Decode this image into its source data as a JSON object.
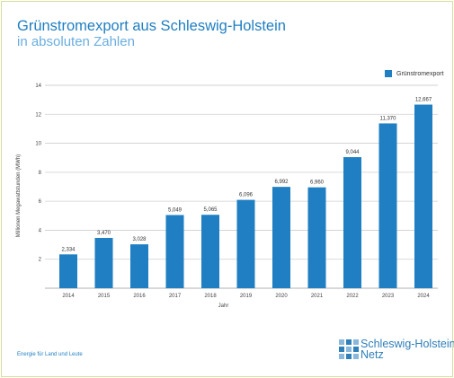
{
  "title": "Grünstromexport aus Schleswig-Holstein",
  "subtitle": "in absoluten Zahlen",
  "footer": "Energie für Land und Leute",
  "logo": {
    "line1": "Schleswig-Holstein",
    "line2": "Netz"
  },
  "colors": {
    "bar": "#1f7fc2",
    "title": "#1f7fc2",
    "subtitle": "#6aaee0",
    "grid": "#cfcfcf"
  },
  "chart_data": {
    "type": "bar",
    "categories": [
      "2014",
      "2015",
      "2016",
      "2017",
      "2018",
      "2019",
      "2020",
      "2021",
      "2022",
      "2023",
      "2024"
    ],
    "series": [
      {
        "name": "Grünstromexport",
        "values": [
          2.334,
          3.47,
          3.028,
          5.049,
          5.065,
          6.096,
          6.992,
          6.96,
          9.044,
          11.37,
          12.667
        ]
      }
    ],
    "data_labels": [
      "2,334",
      "3,470",
      "3,028",
      "5,049",
      "5,065",
      "6,096",
      "6,992",
      "6,960",
      "9,044",
      "11,370",
      "12,667"
    ],
    "xlabel": "Jahr",
    "ylabel": "Millionen Megawattstunden (MWh)",
    "ylim": [
      0,
      14
    ],
    "yticks": [
      2,
      4,
      6,
      8,
      10,
      12,
      14
    ],
    "grid": true,
    "legend_position": "top-right"
  }
}
